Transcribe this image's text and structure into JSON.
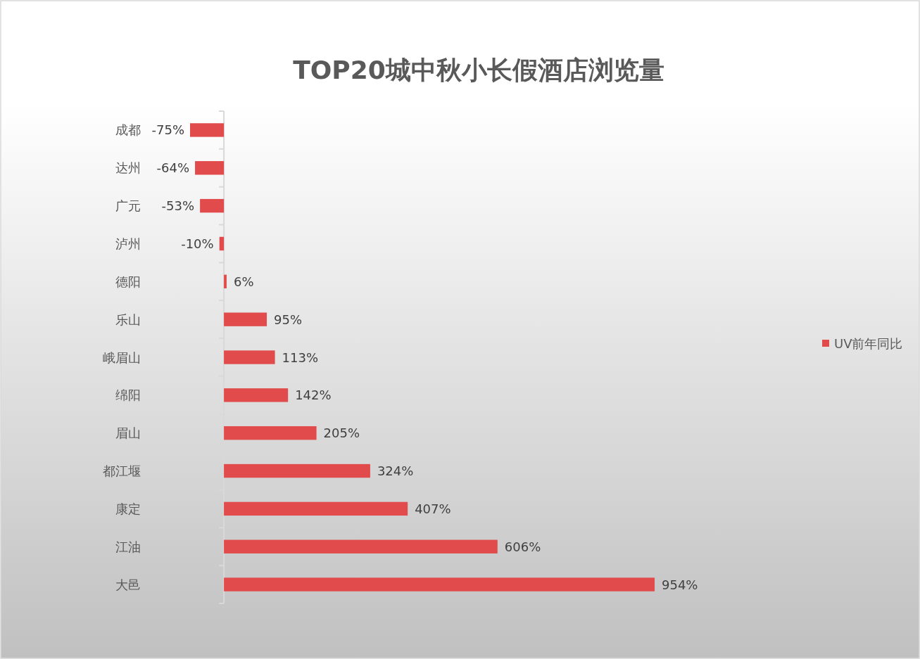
{
  "chart_data": {
    "type": "bar",
    "orientation": "horizontal",
    "title": "TOP20城中秋小长假酒店浏览量",
    "categories": [
      "成都",
      "达州",
      "广元",
      "泸州",
      "德阳",
      "乐山",
      "峨眉山",
      "绵阳",
      "眉山",
      "都江堰",
      "康定",
      "江油",
      "大邑"
    ],
    "series": [
      {
        "name": "UV前年同比",
        "color": "#e24b4b",
        "values": [
          -75,
          -64,
          -53,
          -10,
          6,
          95,
          113,
          142,
          205,
          324,
          407,
          606,
          954
        ],
        "value_labels": [
          "-75%",
          "-64%",
          "-53%",
          "-10%",
          "6%",
          "95%",
          "113%",
          "142%",
          "205%",
          "324%",
          "407%",
          "606%",
          "954%"
        ]
      }
    ],
    "legend": "right"
  }
}
